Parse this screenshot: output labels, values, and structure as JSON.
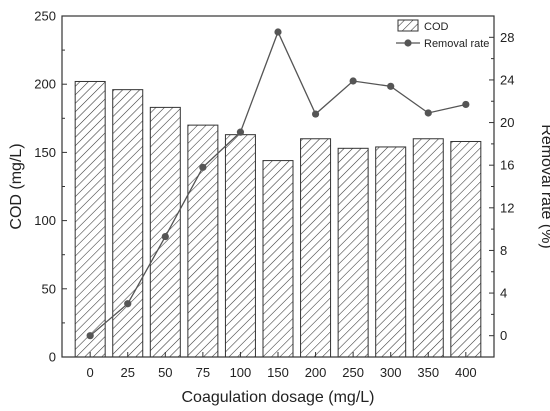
{
  "chart_data": {
    "type": "bar",
    "categories": [
      "0",
      "25",
      "50",
      "75",
      "100",
      "150",
      "200",
      "250",
      "300",
      "350",
      "400"
    ],
    "series": [
      {
        "name": "COD",
        "type": "bar",
        "axis": "left",
        "values": [
          202,
          196,
          183,
          170,
          163,
          144,
          160,
          153,
          154,
          160,
          158
        ],
        "fill": "hatched"
      },
      {
        "name": "Removal rate",
        "type": "line",
        "axis": "right",
        "values": [
          0,
          3,
          9.3,
          15.8,
          19.1,
          28.5,
          20.8,
          23.9,
          23.4,
          20.9,
          21.7
        ],
        "color": "#555555"
      }
    ],
    "xlabel": "Coagulation dosage (mg/L)",
    "ylabel": "COD (mg/L)",
    "y2label": "Removal rate (%)",
    "ylim": [
      0,
      250
    ],
    "yticks": [
      0,
      50,
      100,
      150,
      200,
      250
    ],
    "y2lim": [
      -2,
      30
    ],
    "y2ticks": [
      0,
      4,
      8,
      12,
      16,
      20,
      24,
      28
    ],
    "grid": false,
    "legend_position": "top-right"
  }
}
